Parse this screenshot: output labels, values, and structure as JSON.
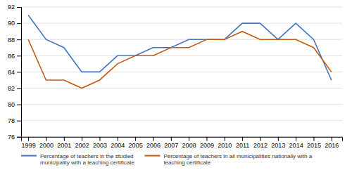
{
  "chart_data": {
    "type": "line",
    "x": [
      1999,
      2000,
      2001,
      2002,
      2003,
      2004,
      2005,
      2006,
      2007,
      2008,
      2009,
      2010,
      2011,
      2012,
      2013,
      2014,
      2015,
      2016
    ],
    "xlim": [
      1998.6,
      2016.6
    ],
    "xticks": [
      1999,
      2000,
      2001,
      2002,
      2003,
      2004,
      2005,
      2006,
      2007,
      2008,
      2009,
      2010,
      2011,
      2012,
      2013,
      2014,
      2015,
      2016
    ],
    "ylim": [
      76,
      92
    ],
    "yticks": [
      76,
      78,
      80,
      82,
      84,
      86,
      88,
      90,
      92
    ],
    "grid": true,
    "legend": "bottom",
    "series": [
      {
        "name": "Percentage of teachers in the studied\nmunicipality with a teaching certificate",
        "color": "#4472c4",
        "values": [
          91,
          88,
          87,
          84,
          84,
          86,
          86,
          87,
          87,
          88,
          88,
          88,
          90,
          90,
          88,
          90,
          88,
          83
        ]
      },
      {
        "name": "Percentage of teachers in all municipalities nationally with a\nteaching certificate",
        "color": "#c55a11",
        "values": [
          88,
          83,
          83,
          82,
          83,
          85,
          86,
          86,
          87,
          87,
          88,
          88,
          89,
          88,
          88,
          88,
          87,
          84
        ]
      }
    ]
  }
}
